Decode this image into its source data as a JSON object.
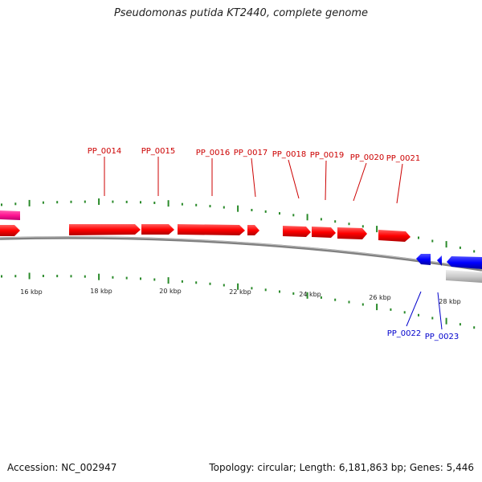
{
  "title": "Pseudomonas putida KT2440, complete genome",
  "footer": {
    "accession": "Accession: NC_002947",
    "summary": "Topology: circular; Length: 6,181,863 bp; Genes: 5,446"
  },
  "colors": {
    "forward_gene": "#ff0000",
    "reverse_gene": "#0000ff",
    "label_forward": "#cc0000",
    "label_reverse": "#0000cc",
    "tick": "#2a8a2a",
    "backbone": "#808080",
    "magenta_feature": "#ff1493",
    "grey_feature": "#cccccc"
  },
  "scale_labels": [
    "16 kbp",
    "18 kbp",
    "20 kbp",
    "22 kbp",
    "24 kbp",
    "26 kbp",
    "28 kbp"
  ],
  "forward_gene_labels": [
    "PP_0014",
    "PP_0015",
    "PP_0016",
    "PP_0017",
    "PP_0018",
    "PP_0019",
    "PP_0020",
    "PP_0021"
  ],
  "reverse_gene_labels": [
    "PP_0022",
    "PP_0023"
  ]
}
